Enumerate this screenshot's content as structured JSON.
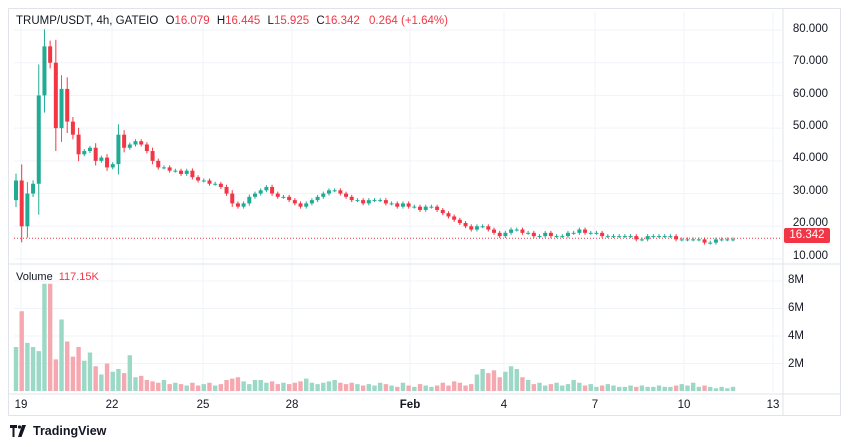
{
  "header": {
    "symbol": "TRUMP/USDT, 4h, GATEIO",
    "open_label": "O",
    "open": "16.079",
    "high_label": "H",
    "high": "16.445",
    "low_label": "L",
    "low": "15.925",
    "close_label": "C",
    "close": "16.342",
    "change": "0.264 (+1.64%)"
  },
  "volume": {
    "label": "Volume",
    "value": "117.15K"
  },
  "price_axis": [
    "80.000",
    "70.000",
    "60.000",
    "50.000",
    "40.000",
    "30.000",
    "20.000",
    "10.000"
  ],
  "volume_axis": [
    "8M",
    "6M",
    "4M",
    "2M"
  ],
  "time_axis": [
    "19",
    "22",
    "25",
    "28",
    "Feb",
    "4",
    "7",
    "10",
    "13"
  ],
  "current_price": "16.342",
  "brand": {
    "name": "TradingView",
    "icon": "tradingview-logo-icon"
  },
  "colors": {
    "up": "#22ab94",
    "down": "#f23645",
    "up_vol": "#9bd8c5",
    "down_vol": "#f5a8b0",
    "grid": "#f0f3fa"
  },
  "chart_data": {
    "type": "candlestick",
    "title": "TRUMP/USDT, 4h, GATEIO",
    "ylim": [
      10,
      80
    ],
    "volume_ylim": [
      0,
      8000000
    ],
    "series": [
      {
        "name": "price_close_approx",
        "values": [
          34,
          20,
          30,
          33,
          60,
          75,
          70,
          50,
          62,
          52,
          48,
          42,
          43,
          44,
          40,
          41,
          38,
          39,
          48,
          44,
          45,
          46,
          45,
          43,
          40,
          38,
          38,
          37,
          37,
          36,
          37,
          35,
          34,
          34,
          33,
          33,
          32,
          30,
          27,
          26,
          27,
          29,
          30,
          31,
          32,
          30,
          29,
          29,
          28,
          27,
          26,
          27,
          28,
          29,
          30,
          31,
          31,
          30,
          29,
          28,
          28,
          27,
          28,
          28,
          28,
          27,
          27,
          26,
          27,
          26,
          26,
          25,
          26,
          26,
          25,
          24,
          23,
          22,
          21,
          20,
          19,
          20,
          20,
          19,
          18,
          17,
          18,
          19,
          19,
          18,
          18,
          17,
          17,
          18,
          17,
          17,
          17,
          18,
          18,
          19,
          18,
          18,
          18,
          17,
          17,
          17,
          17,
          17,
          17,
          16,
          16,
          17,
          17,
          17,
          17,
          17,
          16,
          16,
          16,
          16,
          16,
          15,
          15,
          16,
          16,
          16,
          16
        ]
      },
      {
        "name": "volume_approx_millions",
        "values": [
          3.2,
          5.8,
          3.5,
          3.2,
          2.9,
          7.8,
          7.8,
          2.3,
          5.2,
          3.6,
          2.5,
          3.2,
          2.2,
          2.8,
          1.8,
          1.2,
          2.0,
          1.4,
          1.6,
          1.3,
          2.6,
          1.0,
          1.1,
          0.8,
          0.7,
          0.6,
          0.8,
          0.5,
          0.6,
          0.5,
          0.4,
          0.6,
          0.4,
          0.5,
          0.6,
          0.4,
          0.5,
          0.8,
          0.9,
          1.0,
          0.7,
          0.5,
          0.8,
          0.8,
          0.6,
          0.7,
          0.5,
          0.6,
          0.5,
          0.6,
          0.7,
          0.9,
          0.6,
          0.5,
          0.6,
          0.7,
          0.8,
          0.6,
          0.5,
          0.6,
          0.5,
          0.4,
          0.5,
          0.4,
          0.6,
          0.5,
          0.4,
          0.3,
          0.6,
          0.4,
          0.3,
          0.5,
          0.4,
          0.3,
          0.4,
          0.6,
          0.4,
          0.7,
          0.6,
          0.4,
          0.5,
          1.2,
          1.6,
          1.3,
          1.5,
          1.0,
          1.4,
          1.8,
          1.6,
          1.0,
          0.8,
          0.5,
          0.6,
          0.4,
          0.5,
          0.6,
          0.4,
          0.5,
          0.8,
          0.6,
          0.4,
          0.5,
          0.3,
          0.4,
          0.5,
          0.4,
          0.3,
          0.3,
          0.4,
          0.3,
          0.4,
          0.3,
          0.3,
          0.4,
          0.3,
          0.3,
          0.4,
          0.5,
          0.4,
          0.6,
          0.3,
          0.4,
          0.3,
          0.2,
          0.3,
          0.2
        ]
      }
    ]
  }
}
